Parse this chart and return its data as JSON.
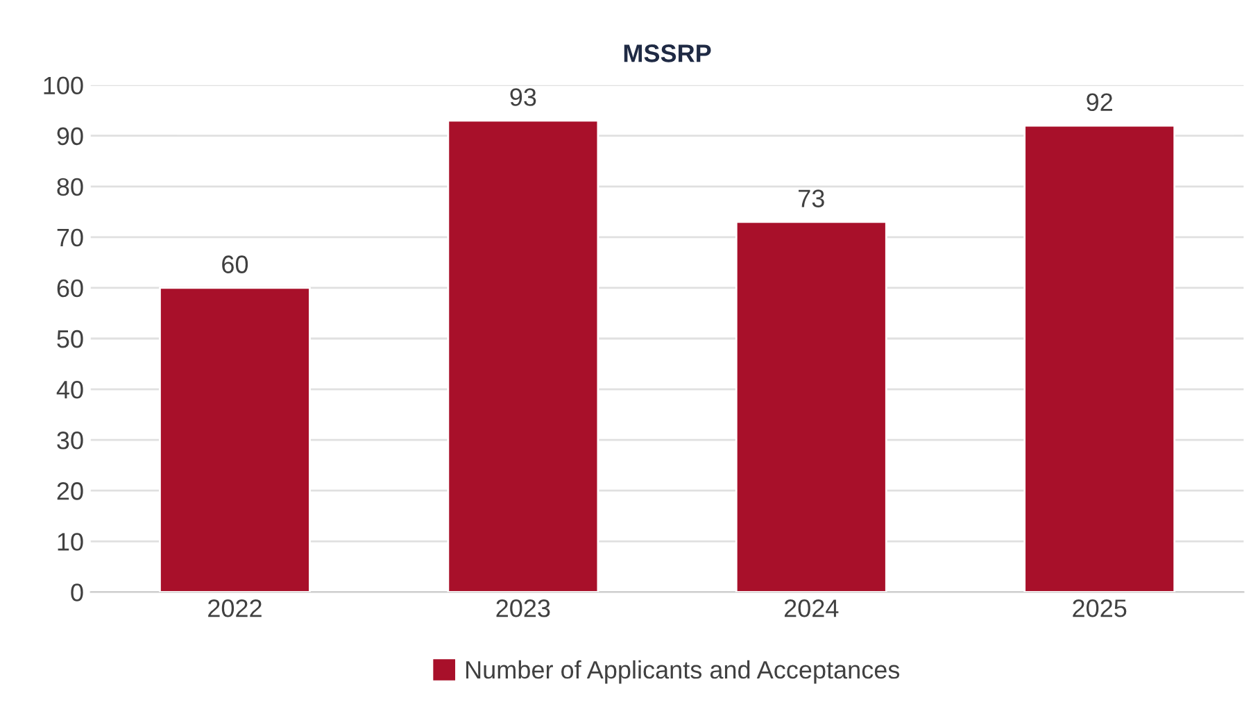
{
  "chart_data": {
    "type": "bar",
    "title": "MSSRP",
    "categories": [
      "2022",
      "2023",
      "2024",
      "2025"
    ],
    "series": [
      {
        "name": "Number of Applicants and Acceptances",
        "color": "#a8102a",
        "values": [
          60,
          93,
          73,
          92
        ]
      }
    ],
    "ylim": [
      0,
      100
    ],
    "yticks": [
      0,
      10,
      20,
      30,
      40,
      50,
      60,
      70,
      80,
      90,
      100
    ],
    "grid": "y",
    "legend": "bottom",
    "data_labels": true
  }
}
